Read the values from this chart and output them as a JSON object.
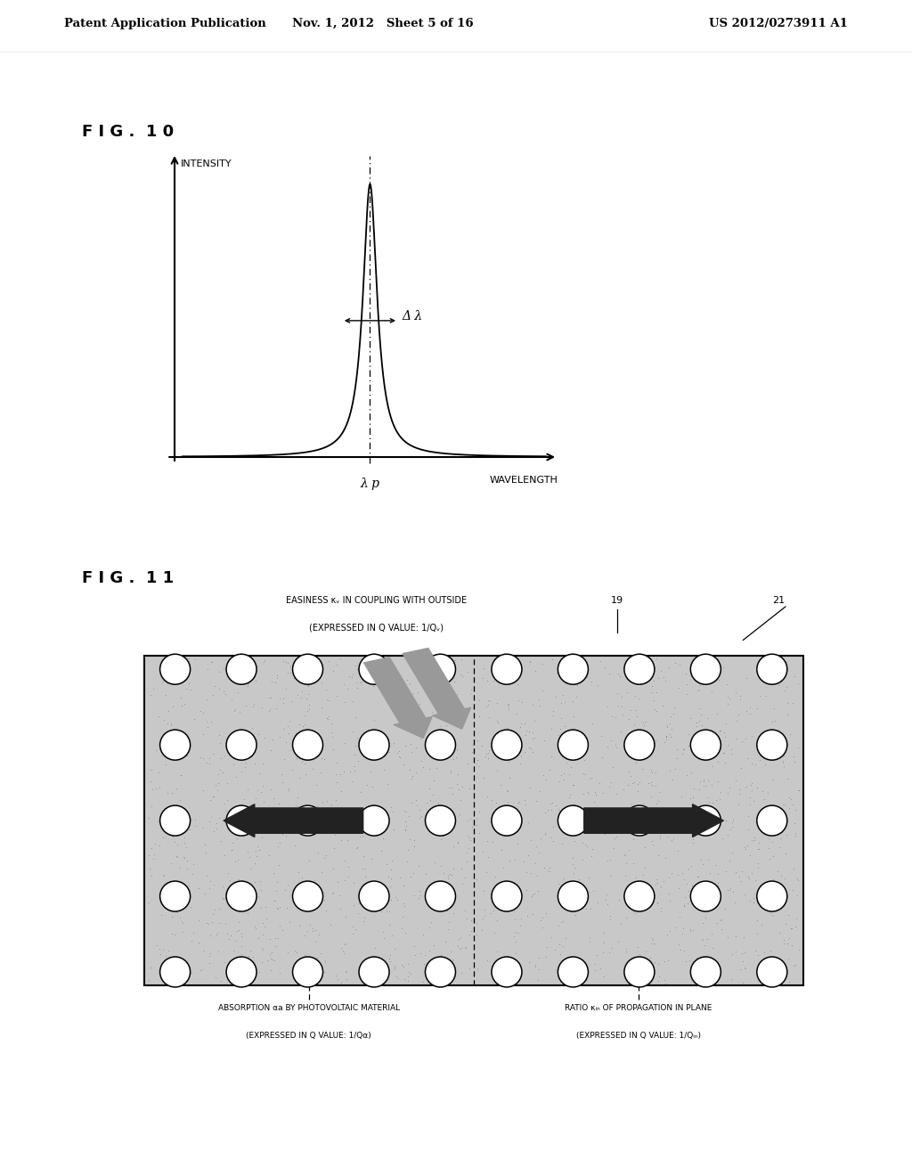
{
  "header_left": "Patent Application Publication",
  "header_mid": "Nov. 1, 2012   Sheet 5 of 16",
  "header_right": "US 2012/0273911 A1",
  "fig10_label": "F I G .  1 0",
  "fig11_label": "F I G .  1 1",
  "intensity_label": "INTENSITY",
  "wavelength_label": "WAVELENGTH",
  "lambda_p_label": "λ p",
  "delta_lambda_label": "Δ λ",
  "easiness_label": "EASINESS κᵥ IN COUPLING WITH OUTSIDE",
  "easiness_label2": "(EXPRESSED IN Q VALUE: 1/Qᵥ)",
  "label_19": "19",
  "label_21": "21",
  "absorption_label": "ABSORPTION αa BY PHOTOVOLTAIC MATERIAL",
  "absorption_label2": "(EXPRESSED IN Q VALUE: 1/Qα)",
  "ratio_label": "RATIO κᵢₙ OF PROPAGATION IN PLANE",
  "ratio_label2": "(EXPRESSED IN Q VALUE: 1/Qᵢₙ)",
  "bg_color": "#ffffff",
  "fg_color": "#000000",
  "dot_bg_color": "#cccccc",
  "gray_arrow_color": "#999999",
  "dark_arrow_color": "#222222"
}
